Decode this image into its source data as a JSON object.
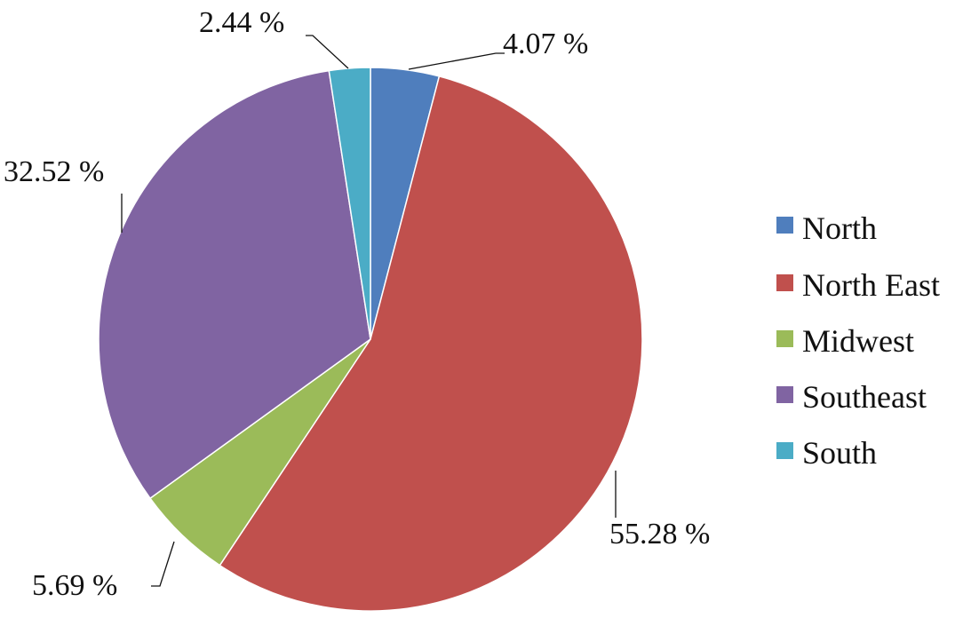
{
  "chart_data": {
    "type": "pie",
    "categories": [
      "North",
      "North East",
      "Midwest",
      "Southeast",
      "South"
    ],
    "values": [
      4.07,
      55.28,
      5.69,
      32.52,
      2.44
    ],
    "data_labels": [
      "4.07 %",
      "55.28 %",
      "5.69 %",
      "32.52 %",
      "2.44 %"
    ],
    "colors": [
      "#4F7EBD",
      "#C0504D",
      "#9BBB59",
      "#8064A2",
      "#4BACC6"
    ],
    "start_angle_deg": 0,
    "direction": "clockwise",
    "legend_position": "right",
    "title": ""
  }
}
